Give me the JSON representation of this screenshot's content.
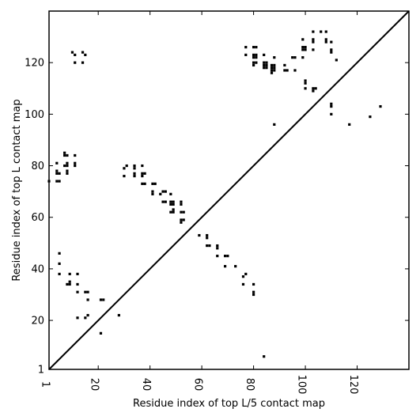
{
  "chart_data": {
    "type": "scatter",
    "title": "",
    "xlabel": "Residue index of top L/5 contact map",
    "ylabel": "Residue index of top L contact map",
    "xlim": [
      1,
      140
    ],
    "ylim": [
      1,
      140
    ],
    "xticks": [
      1,
      20,
      40,
      60,
      80,
      100,
      120
    ],
    "yticks": [
      1,
      20,
      40,
      60,
      80,
      100,
      120
    ],
    "xtick_labels": [
      "1",
      "20",
      "40",
      "60",
      "80",
      "100",
      "120"
    ],
    "ytick_labels": [
      "1",
      "20",
      "40",
      "60",
      "80",
      "100",
      "120"
    ],
    "diagonal": true,
    "grid": false,
    "colors": {
      "marker": "#000000",
      "axes": "#000000",
      "background": "#ffffff"
    },
    "series": [
      {
        "points": [
          [
            1,
            74
          ],
          [
            4,
            74
          ],
          [
            5,
            74
          ],
          [
            4,
            77
          ],
          [
            4,
            78
          ],
          [
            5,
            77
          ],
          [
            4,
            81
          ],
          [
            8,
            77
          ],
          [
            8,
            78
          ],
          [
            7,
            80
          ],
          [
            8,
            80
          ],
          [
            8,
            81
          ],
          [
            7,
            84
          ],
          [
            8,
            84
          ],
          [
            7,
            85
          ],
          [
            11,
            80
          ],
          [
            11,
            81
          ],
          [
            11,
            84
          ],
          [
            5,
            46
          ],
          [
            5,
            42
          ],
          [
            5,
            38
          ],
          [
            8,
            34
          ],
          [
            9,
            34
          ],
          [
            9,
            35
          ],
          [
            9,
            38
          ],
          [
            12,
            38
          ],
          [
            12,
            34
          ],
          [
            12,
            31
          ],
          [
            15,
            31
          ],
          [
            16,
            31
          ],
          [
            16,
            28
          ],
          [
            12,
            21
          ],
          [
            15,
            21
          ],
          [
            16,
            22
          ],
          [
            21,
            28
          ],
          [
            22,
            28
          ],
          [
            21,
            15
          ],
          [
            28,
            22
          ],
          [
            10,
            124
          ],
          [
            11,
            123
          ],
          [
            11,
            120
          ],
          [
            14,
            124
          ],
          [
            15,
            123
          ],
          [
            14,
            120
          ],
          [
            30,
            76
          ],
          [
            30,
            79
          ],
          [
            31,
            80
          ],
          [
            34,
            76
          ],
          [
            34,
            77
          ],
          [
            34,
            79
          ],
          [
            34,
            80
          ],
          [
            37,
            76
          ],
          [
            37,
            77
          ],
          [
            38,
            77
          ],
          [
            37,
            80
          ],
          [
            37,
            73
          ],
          [
            38,
            73
          ],
          [
            41,
            73
          ],
          [
            41,
            70
          ],
          [
            41,
            69
          ],
          [
            42,
            73
          ],
          [
            44,
            69
          ],
          [
            45,
            70
          ],
          [
            45,
            66
          ],
          [
            46,
            70
          ],
          [
            46,
            66
          ],
          [
            48,
            69
          ],
          [
            48,
            66
          ],
          [
            48,
            65
          ],
          [
            48,
            62
          ],
          [
            49,
            66
          ],
          [
            49,
            65
          ],
          [
            49,
            63
          ],
          [
            49,
            62
          ],
          [
            52,
            66
          ],
          [
            52,
            65
          ],
          [
            52,
            62
          ],
          [
            53,
            62
          ],
          [
            52,
            59
          ],
          [
            53,
            59
          ],
          [
            52,
            58
          ],
          [
            59,
            53
          ],
          [
            62,
            53
          ],
          [
            62,
            52
          ],
          [
            62,
            49
          ],
          [
            63,
            49
          ],
          [
            66,
            49
          ],
          [
            66,
            48
          ],
          [
            66,
            45
          ],
          [
            69,
            45
          ],
          [
            70,
            45
          ],
          [
            69,
            41
          ],
          [
            73,
            41
          ],
          [
            77,
            38
          ],
          [
            76,
            37
          ],
          [
            76,
            34
          ],
          [
            80,
            34
          ],
          [
            80,
            31
          ],
          [
            80,
            30
          ],
          [
            84,
            6
          ],
          [
            77,
            126
          ],
          [
            80,
            126
          ],
          [
            81,
            126
          ],
          [
            77,
            123
          ],
          [
            80,
            123
          ],
          [
            81,
            123
          ],
          [
            84,
            123
          ],
          [
            80,
            122
          ],
          [
            81,
            122
          ],
          [
            80,
            120
          ],
          [
            81,
            120
          ],
          [
            80,
            119
          ],
          [
            84,
            120
          ],
          [
            84,
            119
          ],
          [
            84,
            118
          ],
          [
            85,
            120
          ],
          [
            85,
            119
          ],
          [
            85,
            118
          ],
          [
            87,
            119
          ],
          [
            88,
            119
          ],
          [
            87,
            118
          ],
          [
            88,
            118
          ],
          [
            87,
            117
          ],
          [
            88,
            117
          ],
          [
            87,
            116
          ],
          [
            88,
            122
          ],
          [
            92,
            119
          ],
          [
            92,
            117
          ],
          [
            93,
            117
          ],
          [
            95,
            122
          ],
          [
            96,
            122
          ],
          [
            96,
            117
          ],
          [
            88,
            96
          ],
          [
            99,
            129
          ],
          [
            99,
            126
          ],
          [
            100,
            126
          ],
          [
            99,
            125
          ],
          [
            100,
            125
          ],
          [
            99,
            122
          ],
          [
            103,
            132
          ],
          [
            106,
            132
          ],
          [
            108,
            132
          ],
          [
            103,
            129
          ],
          [
            103,
            128
          ],
          [
            103,
            125
          ],
          [
            108,
            129
          ],
          [
            108,
            128
          ],
          [
            110,
            128
          ],
          [
            110,
            125
          ],
          [
            110,
            124
          ],
          [
            112,
            121
          ],
          [
            100,
            113
          ],
          [
            100,
            112
          ],
          [
            100,
            110
          ],
          [
            103,
            110
          ],
          [
            104,
            110
          ],
          [
            103,
            109
          ],
          [
            110,
            104
          ],
          [
            110,
            103
          ],
          [
            110,
            100
          ],
          [
            117,
            96
          ],
          [
            125,
            99
          ],
          [
            129,
            103
          ]
        ]
      }
    ]
  }
}
